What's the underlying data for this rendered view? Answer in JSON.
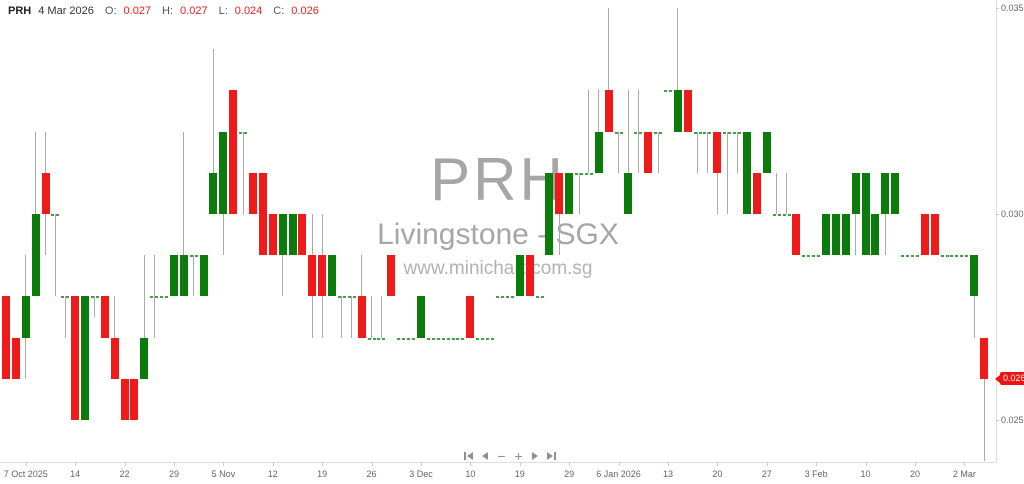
{
  "header": {
    "symbol": "PRH",
    "date": "4 Mar 2026",
    "open_label": "O:",
    "open": "0.027",
    "high_label": "H:",
    "high": "0.027",
    "low_label": "L:",
    "low": "0.024",
    "close_label": "C:",
    "close": "0.026"
  },
  "watermark": {
    "symbol": "PRH",
    "name": "Livingstone - SGX",
    "url": "www.minichart.com.sg"
  },
  "y_axis": {
    "labels": [
      "0.035",
      "0.030",
      "0.025"
    ],
    "values": [
      0.035,
      0.03,
      0.025
    ],
    "last_price_tag": "0.026"
  },
  "controls": {
    "minus": "−",
    "plus": "+",
    "buttons": [
      "skip-to-start",
      "step-back",
      "zoom-out",
      "zoom-in",
      "step-forward",
      "skip-to-end"
    ]
  },
  "colors": {
    "up": "#0b7c0b",
    "down": "#ef1a1a",
    "flat_dash": "#44a044",
    "wick": "#aaaaaa",
    "tag_bg": "#f01212",
    "header_value": "#e42222",
    "watermark": "#a6a6a6"
  },
  "chart_data": {
    "type": "candlestick",
    "title": "PRH",
    "subtitle": "Livingstone - SGX",
    "exchange": "SGX",
    "price_step": 0.001,
    "price_range_shown": [
      0.0235,
      0.0352
    ],
    "last_price": 0.026,
    "x_ticks": [
      {
        "index": 2,
        "label": "7 Oct 2025"
      },
      {
        "index": 7,
        "label": "14"
      },
      {
        "index": 12,
        "label": "22"
      },
      {
        "index": 17,
        "label": "29"
      },
      {
        "index": 22,
        "label": "5 Nov"
      },
      {
        "index": 27,
        "label": "12"
      },
      {
        "index": 32,
        "label": "19"
      },
      {
        "index": 37,
        "label": "26"
      },
      {
        "index": 42,
        "label": "3 Dec"
      },
      {
        "index": 47,
        "label": "10"
      },
      {
        "index": 52,
        "label": "19"
      },
      {
        "index": 57,
        "label": "29"
      },
      {
        "index": 62,
        "label": "6 Jan 2026"
      },
      {
        "index": 67,
        "label": "13"
      },
      {
        "index": 72,
        "label": "20"
      },
      {
        "index": 77,
        "label": "27"
      },
      {
        "index": 82,
        "label": "3 Feb"
      },
      {
        "index": 87,
        "label": "10"
      },
      {
        "index": 92,
        "label": "20"
      },
      {
        "index": 97,
        "label": "2 Mar"
      }
    ],
    "candles_format": [
      "open",
      "high",
      "low",
      "close"
    ],
    "candles": [
      [
        0.028,
        0.028,
        0.026,
        0.026
      ],
      [
        0.027,
        0.027,
        0.026,
        0.026
      ],
      [
        0.027,
        0.029,
        0.026,
        0.028
      ],
      [
        0.028,
        0.032,
        0.028,
        0.03
      ],
      [
        0.031,
        0.032,
        0.029,
        0.03
      ],
      [
        0.03,
        0.03,
        0.028,
        0.03
      ],
      [
        0.028,
        0.028,
        0.027,
        0.028
      ],
      [
        0.028,
        0.028,
        0.025,
        0.025
      ],
      [
        0.025,
        0.028,
        0.025,
        0.028
      ],
      [
        0.028,
        0.028,
        0.0275,
        0.028
      ],
      [
        0.028,
        0.028,
        0.027,
        0.027
      ],
      [
        0.027,
        0.028,
        0.026,
        0.026
      ],
      [
        0.026,
        0.026,
        0.025,
        0.025
      ],
      [
        0.026,
        0.026,
        0.025,
        0.025
      ],
      [
        0.026,
        0.029,
        0.026,
        0.027
      ],
      [
        0.028,
        0.029,
        0.027,
        0.028
      ],
      [
        0.028,
        0.028,
        0.028,
        0.028
      ],
      [
        0.028,
        0.029,
        0.028,
        0.029
      ],
      [
        0.028,
        0.032,
        0.028,
        0.029
      ],
      [
        0.029,
        0.029,
        0.028,
        0.029
      ],
      [
        0.028,
        0.029,
        0.028,
        0.029
      ],
      [
        0.03,
        0.034,
        0.03,
        0.031
      ],
      [
        0.03,
        0.032,
        0.029,
        0.032
      ],
      [
        0.033,
        0.033,
        0.03,
        0.03
      ],
      [
        0.032,
        0.032,
        0.03,
        0.032
      ],
      [
        0.031,
        0.031,
        0.03,
        0.03
      ],
      [
        0.031,
        0.031,
        0.029,
        0.029
      ],
      [
        0.03,
        0.03,
        0.029,
        0.029
      ],
      [
        0.029,
        0.03,
        0.028,
        0.03
      ],
      [
        0.029,
        0.03,
        0.029,
        0.03
      ],
      [
        0.03,
        0.03,
        0.029,
        0.029
      ],
      [
        0.029,
        0.03,
        0.027,
        0.028
      ],
      [
        0.029,
        0.03,
        0.027,
        0.028
      ],
      [
        0.028,
        0.029,
        0.028,
        0.029
      ],
      [
        0.028,
        0.028,
        0.027,
        0.028
      ],
      [
        0.028,
        0.028,
        0.027,
        0.028
      ],
      [
        0.028,
        0.029,
        0.027,
        0.027
      ],
      [
        0.027,
        0.028,
        0.027,
        0.027
      ],
      [
        0.027,
        0.028,
        0.027,
        0.027
      ],
      [
        0.029,
        0.029,
        0.028,
        0.028
      ],
      [
        0.027,
        0.027,
        0.027,
        0.027
      ],
      [
        0.027,
        0.027,
        0.027,
        0.027
      ],
      [
        0.027,
        0.028,
        0.027,
        0.028
      ],
      [
        0.027,
        0.027,
        0.027,
        0.027
      ],
      [
        0.027,
        0.027,
        0.027,
        0.027
      ],
      [
        0.027,
        0.027,
        0.027,
        0.027
      ],
      [
        0.027,
        0.027,
        0.027,
        0.027
      ],
      [
        0.028,
        0.028,
        0.027,
        0.027
      ],
      [
        0.027,
        0.027,
        0.027,
        0.027
      ],
      [
        0.027,
        0.027,
        0.027,
        0.027
      ],
      [
        0.028,
        0.028,
        0.028,
        0.028
      ],
      [
        0.028,
        0.028,
        0.028,
        0.028
      ],
      [
        0.028,
        0.029,
        0.028,
        0.029
      ],
      [
        0.029,
        0.029,
        0.028,
        0.028
      ],
      [
        0.028,
        0.028,
        0.028,
        0.028
      ],
      [
        0.029,
        0.031,
        0.029,
        0.031
      ],
      [
        0.031,
        0.031,
        0.029,
        0.03
      ],
      [
        0.03,
        0.031,
        0.03,
        0.031
      ],
      [
        0.031,
        0.031,
        0.03,
        0.031
      ],
      [
        0.031,
        0.033,
        0.031,
        0.031
      ],
      [
        0.031,
        0.033,
        0.031,
        0.032
      ],
      [
        0.033,
        0.035,
        0.032,
        0.032
      ],
      [
        0.032,
        0.032,
        0.031,
        0.032
      ],
      [
        0.03,
        0.033,
        0.03,
        0.031
      ],
      [
        0.032,
        0.033,
        0.031,
        0.032
      ],
      [
        0.032,
        0.032,
        0.031,
        0.031
      ],
      [
        0.032,
        0.032,
        0.031,
        0.032
      ],
      [
        0.033,
        0.033,
        0.033,
        0.033
      ],
      [
        0.032,
        0.035,
        0.032,
        0.033
      ],
      [
        0.033,
        0.033,
        0.032,
        0.032
      ],
      [
        0.032,
        0.032,
        0.031,
        0.032
      ],
      [
        0.032,
        0.032,
        0.031,
        0.032
      ],
      [
        0.032,
        0.032,
        0.03,
        0.031
      ],
      [
        0.032,
        0.032,
        0.03,
        0.032
      ],
      [
        0.032,
        0.032,
        0.031,
        0.032
      ],
      [
        0.03,
        0.032,
        0.03,
        0.032
      ],
      [
        0.031,
        0.031,
        0.03,
        0.03
      ],
      [
        0.031,
        0.032,
        0.031,
        0.032
      ],
      [
        0.03,
        0.031,
        0.03,
        0.03
      ],
      [
        0.03,
        0.031,
        0.03,
        0.03
      ],
      [
        0.03,
        0.03,
        0.029,
        0.029
      ],
      [
        0.029,
        0.029,
        0.029,
        0.029
      ],
      [
        0.029,
        0.029,
        0.029,
        0.029
      ],
      [
        0.029,
        0.03,
        0.029,
        0.03
      ],
      [
        0.029,
        0.03,
        0.029,
        0.03
      ],
      [
        0.029,
        0.03,
        0.029,
        0.03
      ],
      [
        0.03,
        0.031,
        0.029,
        0.031
      ],
      [
        0.029,
        0.031,
        0.029,
        0.031
      ],
      [
        0.029,
        0.03,
        0.029,
        0.03
      ],
      [
        0.03,
        0.031,
        0.029,
        0.031
      ],
      [
        0.03,
        0.031,
        0.03,
        0.031
      ],
      [
        0.029,
        0.029,
        0.029,
        0.029
      ],
      [
        0.029,
        0.029,
        0.029,
        0.029
      ],
      [
        0.03,
        0.03,
        0.029,
        0.029
      ],
      [
        0.03,
        0.03,
        0.029,
        0.029
      ],
      [
        0.029,
        0.029,
        0.029,
        0.029
      ],
      [
        0.029,
        0.029,
        0.029,
        0.029
      ],
      [
        0.029,
        0.029,
        0.029,
        0.029
      ],
      [
        0.028,
        0.029,
        0.027,
        0.029
      ],
      [
        0.027,
        0.027,
        0.024,
        0.026
      ]
    ]
  }
}
